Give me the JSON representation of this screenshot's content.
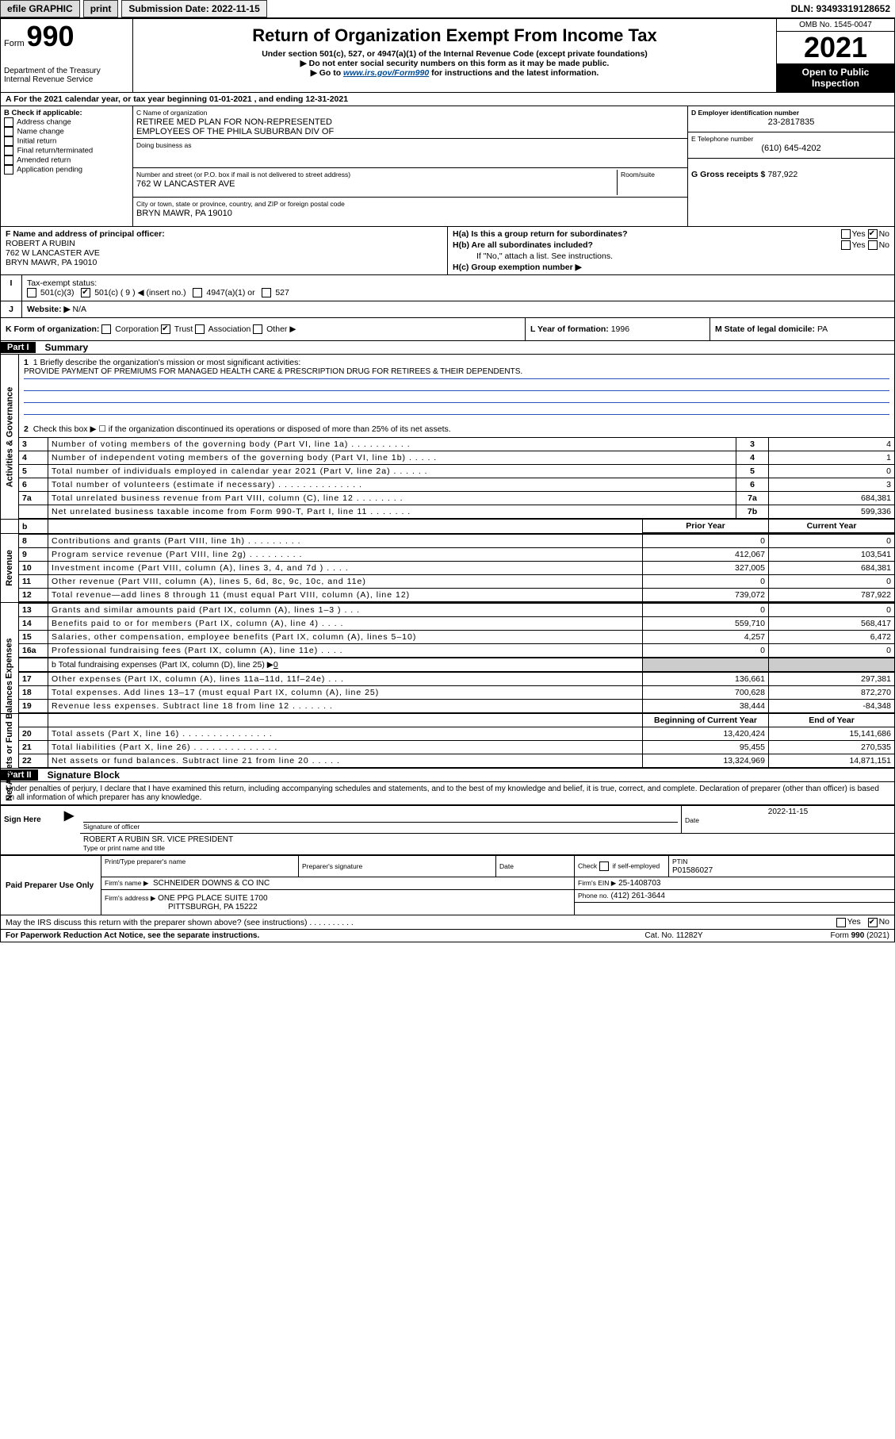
{
  "topbar": {
    "efile": "efile GRAPHIC",
    "print": "print",
    "sub_label": "Submission Date: 2022-11-15",
    "dln": "DLN: 93493319128652"
  },
  "header": {
    "form_prefix": "Form",
    "form_no": "990",
    "dept": "Department of the Treasury",
    "irs": "Internal Revenue Service",
    "title": "Return of Organization Exempt From Income Tax",
    "sub1": "Under section 501(c), 527, or 4947(a)(1) of the Internal Revenue Code (except private foundations)",
    "sub2": "▶ Do not enter social security numbers on this form as it may be made public.",
    "sub3a": "▶ Go to ",
    "sub3link": "www.irs.gov/Form990",
    "sub3b": " for instructions and the latest information.",
    "omb": "OMB No. 1545-0047",
    "year": "2021",
    "open": "Open to Public Inspection"
  },
  "row_a": "For the 2021 calendar year, or tax year beginning 01-01-2021   , and ending 12-31-2021",
  "box_b": {
    "title": "B Check if applicable:",
    "opts": [
      "Address change",
      "Name change",
      "Initial return",
      "Final return/terminated",
      "Amended return",
      "Application pending"
    ]
  },
  "box_c": {
    "label": "C Name of organization",
    "name1": "RETIREE MED PLAN FOR NON-REPRESENTED",
    "name2": "EMPLOYEES OF THE PHILA SUBURBAN DIV OF",
    "dba_label": "Doing business as",
    "addr_label": "Number and street (or P.O. box if mail is not delivered to street address)",
    "room_label": "Room/suite",
    "addr": "762 W LANCASTER AVE",
    "city_label": "City or town, state or province, country, and ZIP or foreign postal code",
    "city": "BRYN MAWR, PA  19010"
  },
  "box_d": {
    "label": "D Employer identification number",
    "val": "23-2817835"
  },
  "box_e": {
    "label": "E Telephone number",
    "val": "(610) 645-4202"
  },
  "box_g": {
    "label": "G Gross receipts $",
    "val": "787,922"
  },
  "box_f": {
    "label": "F Name and address of principal officer:",
    "name": "ROBERT A RUBIN",
    "addr1": "762 W LANCASTER AVE",
    "addr2": "BRYN MAWR, PA  19010"
  },
  "box_h": {
    "ha": "H(a)  Is this a group return for subordinates?",
    "hb": "H(b)  Are all subordinates included?",
    "hnote": "If \"No,\" attach a list. See instructions.",
    "hc": "H(c)  Group exemption number ▶",
    "yes": "Yes",
    "no": "No"
  },
  "tax_exempt": {
    "label": "Tax-exempt status:",
    "c3": "501(c)(3)",
    "c": "501(c) ( 9 ) ◀ (insert no.)",
    "a1": "4947(a)(1) or",
    "s527": "527"
  },
  "row_i": "I",
  "row_j": {
    "lbl": "J",
    "label": "Website: ▶",
    "val": "N/A"
  },
  "row_k": {
    "label": "K Form of organization:",
    "opts": [
      "Corporation",
      "Trust",
      "Association",
      "Other ▶"
    ],
    "l": "L Year of formation:",
    "lval": "1996",
    "m": "M State of legal domicile:",
    "mval": "PA"
  },
  "part1": {
    "label": "Part I",
    "title": "Summary"
  },
  "ag": {
    "vlabel": "Activities & Governance",
    "line1a": "1  Briefly describe the organization's mission or most significant activities:",
    "line1b": "PROVIDE PAYMENT OF PREMIUMS FOR MANAGED HEALTH CARE & PRESCRIPTION DRUG FOR RETIREES & THEIR DEPENDENTS.",
    "line2": "Check this box ▶ ☐  if the organization discontinued its operations or disposed of more than 25% of its net assets.",
    "rows": [
      {
        "n": "3",
        "t": "Number of voting members of the governing body (Part VI, line 1a)  .   .   .   .   .   .   .   .   .   .",
        "k": "3",
        "v": "4"
      },
      {
        "n": "4",
        "t": "Number of independent voting members of the governing body (Part VI, line 1b)  .   .   .   .   .",
        "k": "4",
        "v": "1"
      },
      {
        "n": "5",
        "t": "Total number of individuals employed in calendar year 2021 (Part V, line 2a)  .   .   .   .   .   .",
        "k": "5",
        "v": "0"
      },
      {
        "n": "6",
        "t": "Total number of volunteers (estimate if necessary)  .   .   .   .   .   .   .   .   .   .   .   .   .   .",
        "k": "6",
        "v": "3"
      },
      {
        "n": "7a",
        "t": "Total unrelated business revenue from Part VIII, column (C), line 12  .   .   .   .   .   .   .   .",
        "k": "7a",
        "v": "684,381"
      },
      {
        "n": "",
        "t": "Net unrelated business taxable income from Form 990-T, Part I, line 11  .   .   .   .   .   .   .",
        "k": "7b",
        "v": "599,336"
      }
    ]
  },
  "rev": {
    "vlabel": "Revenue",
    "hdr_prior": "Prior Year",
    "hdr_curr": "Current Year",
    "rows": [
      {
        "n": "8",
        "t": "Contributions and grants (Part VIII, line 1h)  .   .   .   .   .   .   .   .   .",
        "p": "0",
        "c": "0"
      },
      {
        "n": "9",
        "t": "Program service revenue (Part VIII, line 2g)  .   .   .   .   .   .   .   .   .",
        "p": "412,067",
        "c": "103,541"
      },
      {
        "n": "10",
        "t": "Investment income (Part VIII, column (A), lines 3, 4, and 7d )  .   .   .   .",
        "p": "327,005",
        "c": "684,381"
      },
      {
        "n": "11",
        "t": "Other revenue (Part VIII, column (A), lines 5, 6d, 8c, 9c, 10c, and 11e)",
        "p": "0",
        "c": "0"
      },
      {
        "n": "12",
        "t": "Total revenue—add lines 8 through 11 (must equal Part VIII, column (A), line 12)",
        "p": "739,072",
        "c": "787,922"
      }
    ]
  },
  "exp": {
    "vlabel": "Expenses",
    "rows": [
      {
        "n": "13",
        "t": "Grants and similar amounts paid (Part IX, column (A), lines 1–3 )  .   .   .",
        "p": "0",
        "c": "0"
      },
      {
        "n": "14",
        "t": "Benefits paid to or for members (Part IX, column (A), line 4)  .   .   .   .",
        "p": "559,710",
        "c": "568,417"
      },
      {
        "n": "15",
        "t": "Salaries, other compensation, employee benefits (Part IX, column (A), lines 5–10)",
        "p": "4,257",
        "c": "6,472"
      },
      {
        "n": "16a",
        "t": "Professional fundraising fees (Part IX, column (A), line 11e)  .   .   .   .",
        "p": "0",
        "c": "0"
      }
    ],
    "line_b_pre": "b  Total fundraising expenses (Part IX, column (D), line 25) ▶",
    "line_b_val": "0",
    "rows2": [
      {
        "n": "17",
        "t": "Other expenses (Part IX, column (A), lines 11a–11d, 11f–24e)  .   .   .",
        "p": "136,661",
        "c": "297,381"
      },
      {
        "n": "18",
        "t": "Total expenses. Add lines 13–17 (must equal Part IX, column (A), line 25)",
        "p": "700,628",
        "c": "872,270"
      },
      {
        "n": "19",
        "t": "Revenue less expenses. Subtract line 18 from line 12  .   .   .   .   .   .   .",
        "p": "38,444",
        "c": "-84,348"
      }
    ]
  },
  "na": {
    "vlabel": "Net Assets or Fund Balances",
    "hdr_beg": "Beginning of Current Year",
    "hdr_end": "End of Year",
    "rows": [
      {
        "n": "20",
        "t": "Total assets (Part X, line 16)  .   .   .   .   .   .   .   .   .   .   .   .   .   .   .",
        "p": "13,420,424",
        "c": "15,141,686"
      },
      {
        "n": "21",
        "t": "Total liabilities (Part X, line 26)  .   .   .   .   .   .   .   .   .   .   .   .   .   .",
        "p": "95,455",
        "c": "270,535"
      },
      {
        "n": "22",
        "t": "Net assets or fund balances. Subtract line 21 from line 20  .   .   .   .   .",
        "p": "13,324,969",
        "c": "14,871,151"
      }
    ]
  },
  "part2": {
    "label": "Part II",
    "title": "Signature Block"
  },
  "sig": {
    "decl": "Under penalties of perjury, I declare that I have examined this return, including accompanying schedules and statements, and to the best of my knowledge and belief, it is true, correct, and complete. Declaration of preparer (other than officer) is based on all information of which preparer has any knowledge.",
    "sign_here": "Sign Here",
    "sig_officer": "Signature of officer",
    "date": "Date",
    "date_val": "2022-11-15",
    "name": "ROBERT A RUBIN  SR. VICE PRESIDENT",
    "name_lbl": "Type or print name and title"
  },
  "paid": {
    "title": "Paid Preparer Use Only",
    "h1": "Print/Type preparer's name",
    "h2": "Preparer's signature",
    "h3": "Date",
    "h4a": "Check",
    "h4b": "if self-employed",
    "h5": "PTIN",
    "ptin": "P01586027",
    "firm_lbl": "Firm's name   ▶",
    "firm": "SCHNEIDER DOWNS & CO INC",
    "ein_lbl": "Firm's EIN ▶",
    "ein": "25-1408703",
    "addr_lbl": "Firm's address ▶",
    "addr1": "ONE PPG PLACE SUITE 1700",
    "addr2": "PITTSBURGH, PA  15222",
    "phone_lbl": "Phone no.",
    "phone": "(412) 261-3644"
  },
  "may": {
    "text": "May the IRS discuss this return with the preparer shown above? (see instructions)  .   .   .   .   .   .   .   .   .   .",
    "yes": "Yes",
    "no": "No"
  },
  "footer": {
    "f1": "For Paperwork Reduction Act Notice, see the separate instructions.",
    "f2": "Cat. No. 11282Y",
    "f3a": "Form ",
    "f3b": "990",
    "f3c": " (2021)"
  }
}
